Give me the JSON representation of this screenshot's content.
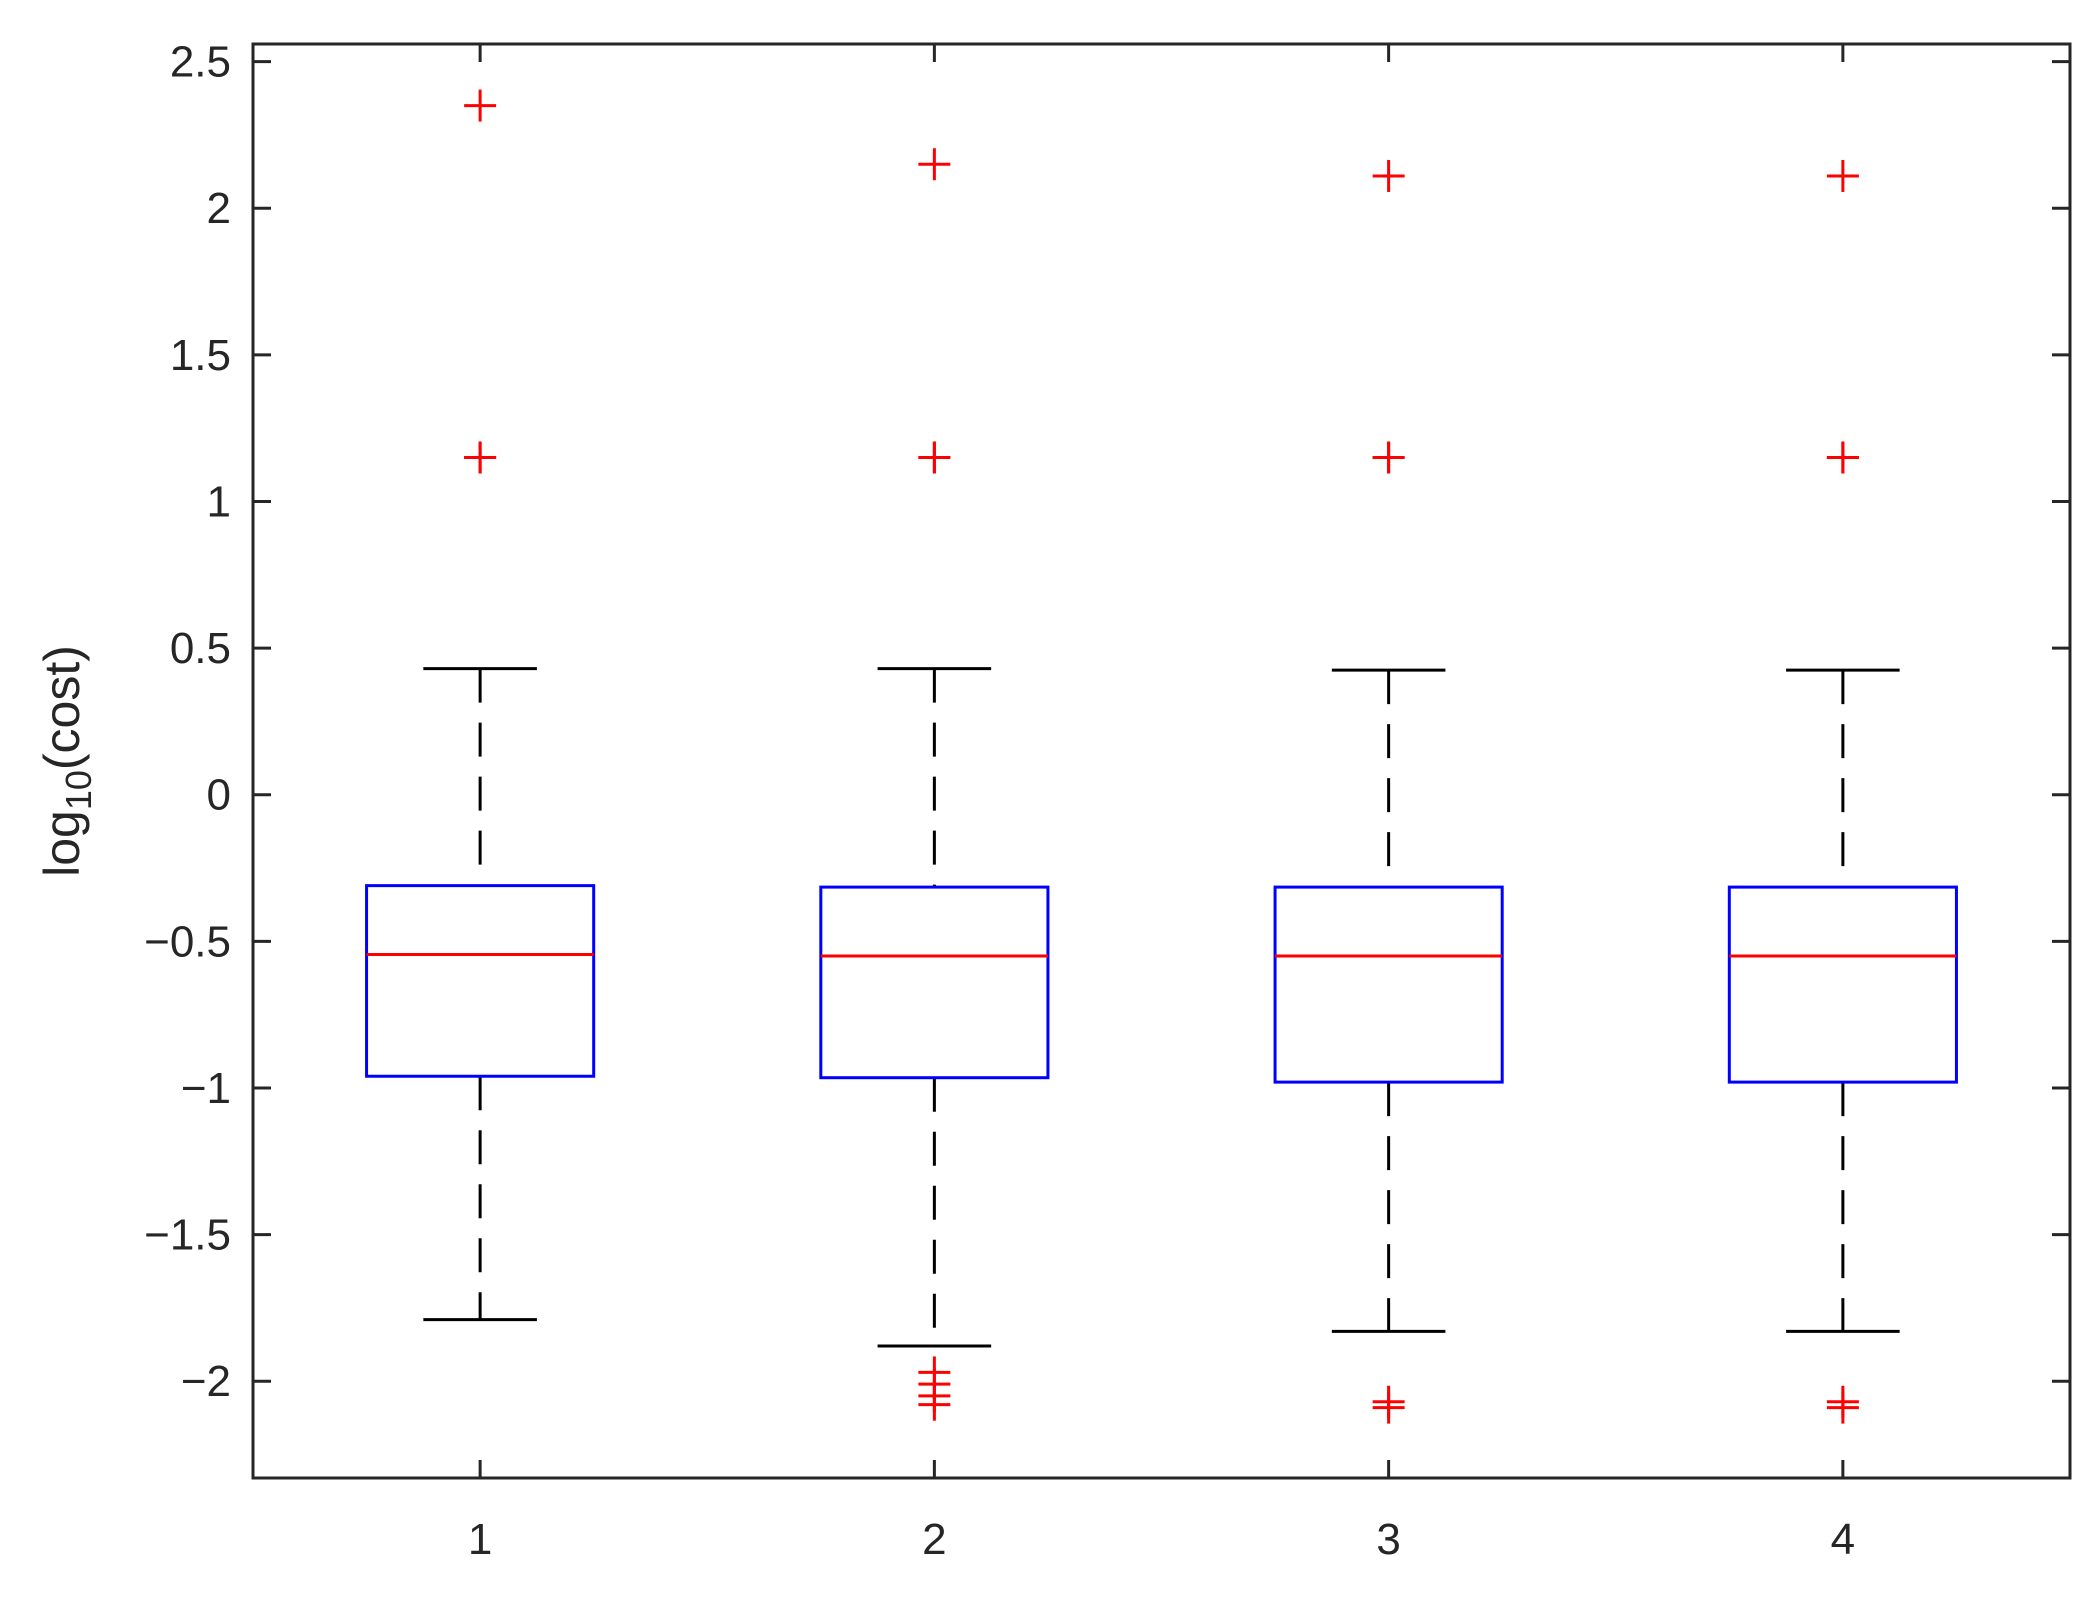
{
  "chart_data": {
    "type": "box",
    "title": "",
    "xlabel": "",
    "ylabel": {
      "base": "log",
      "subscript": "10",
      "suffix": "(cost)"
    },
    "categories": [
      "1",
      "2",
      "3",
      "4"
    ],
    "ylim": [
      -2.33,
      2.56
    ],
    "xlim": [
      0.5,
      4.5
    ],
    "yticks": [
      {
        "value": -2,
        "label": "−2"
      },
      {
        "value": -1.5,
        "label": "−1.5"
      },
      {
        "value": -1,
        "label": "−1"
      },
      {
        "value": -0.5,
        "label": "−0.5"
      },
      {
        "value": 0,
        "label": "0"
      },
      {
        "value": 0.5,
        "label": "0.5"
      },
      {
        "value": 1,
        "label": "1"
      },
      {
        "value": 1.5,
        "label": "1.5"
      },
      {
        "value": 2,
        "label": "2"
      },
      {
        "value": 2.5,
        "label": "2.5"
      }
    ],
    "boxes": [
      {
        "category": "1",
        "q1": -0.96,
        "median": -0.545,
        "q3": -0.31,
        "whisker_low": -1.79,
        "whisker_high": 0.43,
        "outliers": [
          2.35,
          1.15,
          1.15
        ]
      },
      {
        "category": "2",
        "q1": -0.965,
        "median": -0.55,
        "q3": -0.315,
        "whisker_low": -1.88,
        "whisker_high": 0.43,
        "outliers": [
          2.15,
          1.15,
          1.15,
          -1.97,
          -2.01,
          -2.05,
          -2.08
        ]
      },
      {
        "category": "3",
        "q1": -0.98,
        "median": -0.55,
        "q3": -0.315,
        "whisker_low": -1.83,
        "whisker_high": 0.425,
        "outliers": [
          2.11,
          1.15,
          1.15,
          -2.07,
          -2.09
        ]
      },
      {
        "category": "4",
        "q1": -0.98,
        "median": -0.55,
        "q3": -0.315,
        "whisker_low": -1.83,
        "whisker_high": 0.425,
        "outliers": [
          2.11,
          1.15,
          1.15,
          -2.07,
          -2.09
        ]
      }
    ],
    "colors": {
      "box": "#0000ff",
      "median": "#ff0000",
      "whisker": "#000000",
      "outlier": "#ff0000",
      "axis": "#262626"
    },
    "grid": false,
    "legend": "none"
  }
}
